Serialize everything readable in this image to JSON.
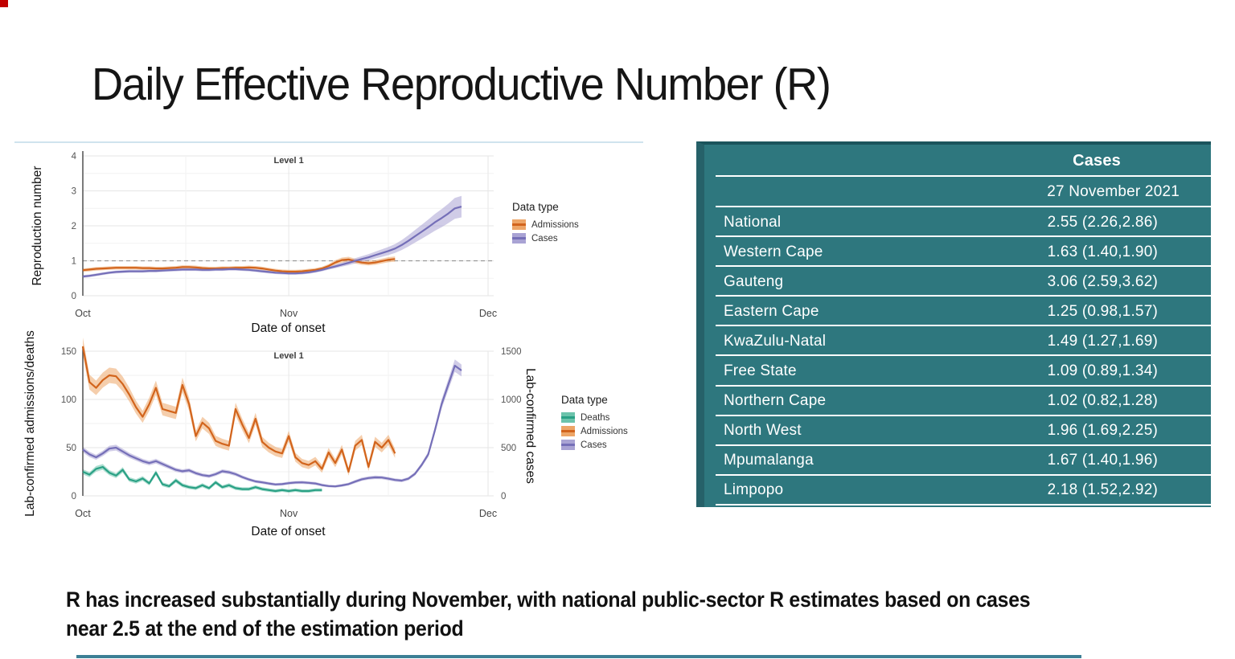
{
  "page": {
    "title": "Daily Effective Reproductive Number (R)",
    "footnote_lines": [
      "R has increased substantially during November, with national public-sector R estimates based on cases",
      "near 2.5 at the end of the estimation period"
    ]
  },
  "colors": {
    "admissions_line": "#d2641c",
    "admissions_band": "#eda567",
    "cases_line": "#756fb8",
    "cases_band": "#a9a3d4",
    "deaths_line": "#2aa185",
    "deaths_band": "#6cc3ab",
    "table_background": "#2e777e",
    "table_border_dark": "#1b545c",
    "table_left_edge": "#266169",
    "divider_blue": "#cfe3ee",
    "bottom_rule": "#3c7f95",
    "corner_mark": "#c10000",
    "grid_major": "#e6e6e6",
    "grid_minor": "#f2f2f2",
    "axis_line": "#454545",
    "reference_dash": "#999999"
  },
  "chart_data": [
    {
      "type": "line",
      "annotation": "Level 1",
      "xlabel": "Date of onset",
      "ylabel": "Reproduction number",
      "x_tick_labels": [
        "Oct",
        "Nov",
        "Dec"
      ],
      "x_tick_days": [
        0,
        31,
        61
      ],
      "ylim": [
        0,
        4
      ],
      "y_ticks": [
        0,
        1,
        2,
        3,
        4
      ],
      "reference_line_y": 1,
      "legend_title": "Data type",
      "legend_position": "right",
      "grid": true,
      "series": [
        {
          "name": "Admissions",
          "color": "admissions",
          "start_day": 0,
          "values": [
            0.73,
            0.75,
            0.77,
            0.78,
            0.79,
            0.8,
            0.8,
            0.8,
            0.8,
            0.79,
            0.79,
            0.78,
            0.78,
            0.79,
            0.8,
            0.82,
            0.82,
            0.81,
            0.79,
            0.78,
            0.78,
            0.79,
            0.79,
            0.8,
            0.8,
            0.81,
            0.8,
            0.78,
            0.75,
            0.72,
            0.7,
            0.69,
            0.69,
            0.7,
            0.72,
            0.74,
            0.78,
            0.85,
            0.95,
            1.02,
            1.04,
            0.99,
            0.95,
            0.93,
            0.95,
            0.99,
            1.03,
            1.05
          ],
          "ci": {
            "min": 0.05,
            "m": 0.1,
            "c": -0.03
          }
        },
        {
          "name": "Cases",
          "color": "cases",
          "start_day": 0,
          "values": [
            0.55,
            0.57,
            0.6,
            0.63,
            0.66,
            0.68,
            0.69,
            0.7,
            0.7,
            0.7,
            0.71,
            0.71,
            0.72,
            0.73,
            0.74,
            0.75,
            0.75,
            0.75,
            0.74,
            0.74,
            0.75,
            0.75,
            0.76,
            0.76,
            0.75,
            0.74,
            0.72,
            0.7,
            0.68,
            0.66,
            0.65,
            0.64,
            0.64,
            0.65,
            0.67,
            0.7,
            0.74,
            0.79,
            0.84,
            0.89,
            0.94,
            1.0,
            1.05,
            1.1,
            1.16,
            1.22,
            1.28,
            1.35,
            1.45,
            1.57,
            1.7,
            1.83,
            1.96,
            2.1,
            2.22,
            2.35,
            2.5,
            2.55
          ],
          "ci": {
            "min": 0.04,
            "m": 0.15,
            "c": -0.075
          }
        }
      ]
    },
    {
      "type": "line",
      "annotation": "Level 1",
      "xlabel": "Date of onset",
      "ylabel_left": "Lab-confirmed admissions/deaths",
      "ylabel_right": "Lab-confirmed cases",
      "x_tick_labels": [
        "Oct",
        "Nov",
        "Dec"
      ],
      "x_tick_days": [
        0,
        31,
        61
      ],
      "ylim_left": [
        0,
        150
      ],
      "y_ticks_left": [
        0,
        50,
        100,
        150
      ],
      "ylim_right": [
        0,
        1500
      ],
      "y_ticks_right": [
        0,
        500,
        1000,
        1500
      ],
      "legend_title": "Data type",
      "legend_position": "right",
      "grid": true,
      "series": [
        {
          "name": "Deaths",
          "color": "deaths",
          "axis": "left",
          "start_day": 0,
          "values": [
            25,
            22,
            28,
            30,
            24,
            21,
            27,
            17,
            15,
            18,
            13,
            24,
            12,
            10,
            16,
            11,
            9,
            8,
            11,
            8,
            14,
            9,
            11,
            8,
            7,
            7,
            9,
            7,
            6,
            5,
            6,
            5,
            6,
            5,
            5,
            6,
            6
          ],
          "ci": {
            "min": 1,
            "m": 0.05,
            "c": 1.5
          }
        },
        {
          "name": "Admissions",
          "color": "admissions",
          "axis": "left",
          "start_day": 0,
          "values": [
            155,
            118,
            112,
            120,
            125,
            124,
            116,
            105,
            92,
            82,
            95,
            112,
            90,
            88,
            86,
            115,
            95,
            62,
            76,
            70,
            57,
            54,
            52,
            90,
            74,
            60,
            80,
            56,
            50,
            46,
            44,
            62,
            40,
            34,
            32,
            36,
            28,
            45,
            34,
            48,
            25,
            52,
            58,
            30,
            56,
            50,
            58,
            44
          ],
          "ci": {
            "min": 2,
            "m": 0.04,
            "c": 3
          }
        },
        {
          "name": "Cases",
          "color": "cases",
          "axis": "right",
          "start_day": 0,
          "values": [
            480,
            430,
            400,
            440,
            490,
            500,
            460,
            420,
            390,
            360,
            340,
            360,
            330,
            300,
            270,
            255,
            265,
            235,
            215,
            205,
            225,
            255,
            245,
            225,
            195,
            170,
            150,
            140,
            128,
            118,
            122,
            132,
            138,
            140,
            135,
            128,
            112,
            102,
            98,
            108,
            122,
            148,
            172,
            185,
            192,
            190,
            178,
            165,
            158,
            178,
            228,
            320,
            430,
            680,
            950,
            1150,
            1350,
            1300
          ],
          "ci": {
            "min": 8,
            "m": 0.04,
            "c": 10
          }
        }
      ]
    }
  ],
  "table": {
    "header": "Cases",
    "date": "27 November 2021",
    "rows": [
      {
        "region": "National",
        "value": "2.55 (2.26,2.86)"
      },
      {
        "region": "Western Cape",
        "value": "1.63 (1.40,1.90)"
      },
      {
        "region": "Gauteng",
        "value": "3.06 (2.59,3.62)"
      },
      {
        "region": "Eastern Cape",
        "value": "1.25 (0.98,1.57)"
      },
      {
        "region": "KwaZulu-Natal",
        "value": "1.49 (1.27,1.69)"
      },
      {
        "region": "Free State",
        "value": "1.09 (0.89,1.34)"
      },
      {
        "region": "Northern Cape",
        "value": "1.02 (0.82,1.28)"
      },
      {
        "region": "North West",
        "value": "1.96 (1.69,2.25)"
      },
      {
        "region": "Mpumalanga",
        "value": "1.67 (1.40,1.96)"
      },
      {
        "region": "Limpopo",
        "value": "2.18 (1.52,2.92)"
      }
    ]
  }
}
